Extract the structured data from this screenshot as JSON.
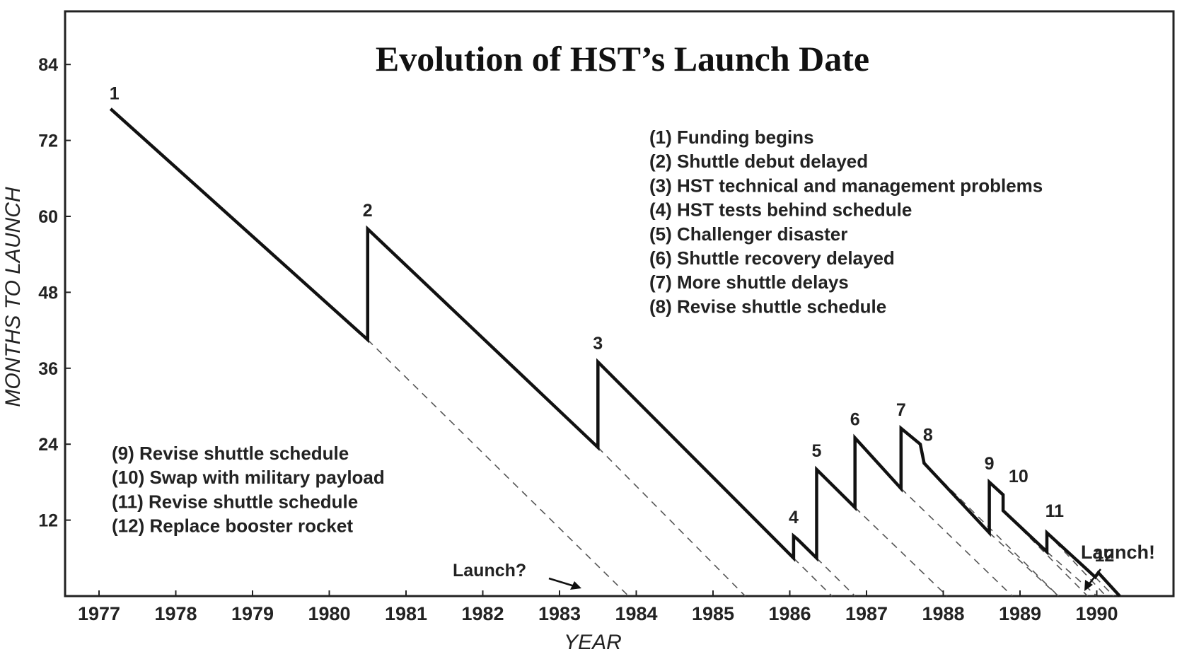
{
  "chart_data": {
    "type": "line",
    "title": "Evolution of HST’s Launch Date",
    "xlabel": "YEAR",
    "ylabel": "MONTHS TO LAUNCH",
    "ylim": [
      0,
      92
    ],
    "yticks": [
      12,
      24,
      36,
      48,
      60,
      72,
      84
    ],
    "xlim": [
      1977,
      1991
    ],
    "xticks": [
      "1977",
      "1978",
      "1979",
      "1980",
      "1981",
      "1982",
      "1983",
      "1984",
      "1985",
      "1986",
      "1987",
      "1988",
      "1989",
      "1990"
    ],
    "series": [
      {
        "x": [
          1977.15,
          1980.5,
          1980.5,
          1983.5,
          1983.5,
          1986.05,
          1986.05,
          1986.1,
          1986.35,
          1986.35,
          1986.85,
          1986.85,
          1987.45,
          1987.45,
          1987.7,
          1987.75,
          1988.6,
          1988.6,
          1988.78,
          1988.78,
          1989.35,
          1989.35,
          1989.98,
          1990.02,
          1990.3
        ],
        "y": [
          77,
          40.5,
          58,
          23.5,
          37,
          6,
          9.5,
          9,
          6,
          20,
          14,
          25,
          17,
          26.5,
          24,
          21,
          10,
          18,
          16,
          13.5,
          7,
          10,
          3,
          3.7,
          0
        ]
      }
    ],
    "projections": [
      {
        "x": [
          1980.5,
          1983.9
        ],
        "y": [
          40.5,
          0
        ]
      },
      {
        "x": [
          1983.5,
          1985.42
        ],
        "y": [
          23.5,
          0
        ]
      },
      {
        "x": [
          1986.05,
          1986.55
        ],
        "y": [
          6,
          0
        ]
      },
      {
        "x": [
          1986.35,
          1986.85
        ],
        "y": [
          6,
          0
        ]
      },
      {
        "x": [
          1986.85,
          1988.05
        ],
        "y": [
          14,
          0
        ]
      },
      {
        "x": [
          1987.45,
          1988.9
        ],
        "y": [
          17,
          0
        ]
      },
      {
        "x": [
          1987.75,
          1989.5
        ],
        "y": [
          21,
          0
        ]
      },
      {
        "x": [
          1988.6,
          1989.5
        ],
        "y": [
          10,
          0
        ]
      },
      {
        "x": [
          1988.78,
          1989.88
        ],
        "y": [
          13.5,
          0
        ]
      },
      {
        "x": [
          1989.35,
          1990.0
        ],
        "y": [
          7,
          0
        ]
      },
      {
        "x": [
          1989.35,
          1990.12
        ],
        "y": [
          10,
          0
        ]
      },
      {
        "x": [
          1989.98,
          1990.22
        ],
        "y": [
          3,
          0
        ]
      }
    ],
    "events": [
      {
        "label": "1",
        "x": 1977.2,
        "y": 78.5
      },
      {
        "label": "2",
        "x": 1980.5,
        "y": 60
      },
      {
        "label": "3",
        "x": 1983.5,
        "y": 39
      },
      {
        "label": "4",
        "x": 1986.05,
        "y": 11.5
      },
      {
        "label": "5",
        "x": 1986.35,
        "y": 22
      },
      {
        "label": "6",
        "x": 1986.85,
        "y": 27
      },
      {
        "label": "7",
        "x": 1987.45,
        "y": 28.5
      },
      {
        "label": "8",
        "x": 1987.8,
        "y": 24.5
      },
      {
        "label": "9",
        "x": 1988.6,
        "y": 20
      },
      {
        "label": "10",
        "x": 1988.98,
        "y": 18
      },
      {
        "label": "11",
        "x": 1989.45,
        "y": 12.5
      },
      {
        "label": "12",
        "x": 1990.1,
        "y": 5.5
      }
    ],
    "annotations": {
      "launch_question": "Launch?",
      "launch_actual": "Launch!"
    },
    "legend_upper": [
      "(1) Funding begins",
      "(2) Shuttle debut delayed",
      "(3) HST technical and management problems",
      "(4) HST tests behind schedule",
      "(5) Challenger disaster",
      "(6) Shuttle recovery delayed",
      "(7) More shuttle delays",
      "(8) Revise shuttle schedule"
    ],
    "legend_lower": [
      "(9) Revise shuttle schedule",
      "(10) Swap with military payload",
      "(11) Revise shuttle schedule",
      "(12) Replace booster rocket"
    ],
    "grid": false
  }
}
